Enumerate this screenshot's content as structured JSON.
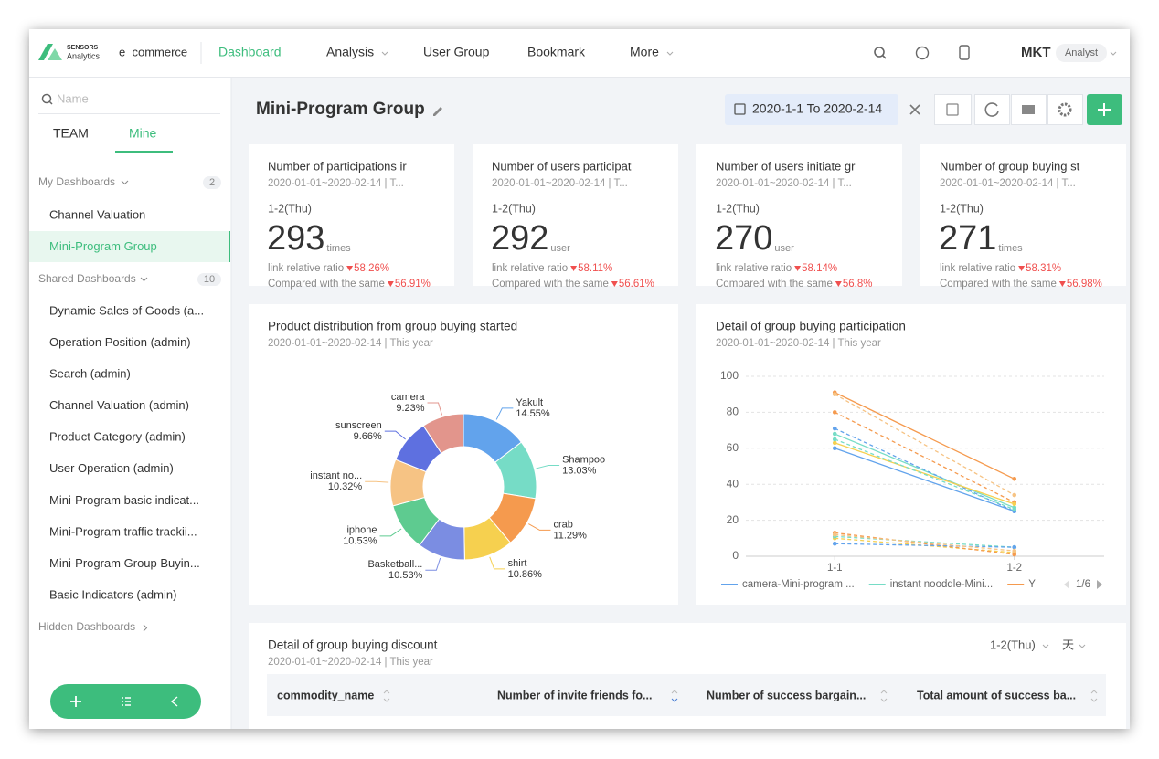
{
  "header": {
    "logo_top": "SENSORS",
    "logo_bottom": "Analytics",
    "project": "e_commerce",
    "nav": [
      "Dashboard",
      "Analysis",
      "User Group",
      "Bookmark",
      "More"
    ],
    "user": "MKT",
    "role": "Analyst"
  },
  "sidebar": {
    "search_placeholder": "Name",
    "tabs": [
      "TEAM",
      "Mine"
    ],
    "my_dashboards": {
      "label": "My Dashboards",
      "count": 2,
      "items": [
        "Channel Valuation",
        "Mini-Program Group"
      ]
    },
    "shared_dashboards": {
      "label": "Shared Dashboards",
      "count": 10,
      "items": [
        "Dynamic Sales of Goods (a...",
        "Operation Position (admin)",
        "Search (admin)",
        "Channel Valuation (admin)",
        "Product Category (admin)",
        "User Operation (admin)",
        "Mini-Program basic indicat...",
        "Mini-Program traffic trackii...",
        "Mini-Program Group Buyin...",
        "Basic Indicators (admin)"
      ]
    },
    "hidden_dashboards": "Hidden Dashboards"
  },
  "main": {
    "title": "Mini-Program Group",
    "date_range": "2020-1-1 To 2020-2-14",
    "kpis": [
      {
        "title": "Number of participations ir",
        "subtitle": "2020-01-01~2020-02-14 | T...",
        "date": "1-2(Thu)",
        "value": 293,
        "unit": "times",
        "ratio_label": "link relative ratio",
        "ratio": "58.26%",
        "compare_label": "Compared with the same",
        "compare": "56.91%"
      },
      {
        "title": "Number of users participat",
        "subtitle": "2020-01-01~2020-02-14 | T...",
        "date": "1-2(Thu)",
        "value": 292,
        "unit": "user",
        "ratio_label": "link relative ratio",
        "ratio": "58.11%",
        "compare_label": "Compared with the same",
        "compare": "56.61%"
      },
      {
        "title": "Number of users initiate gr",
        "subtitle": "2020-01-01~2020-02-14 | T...",
        "date": "1-2(Thu)",
        "value": 270,
        "unit": "user",
        "ratio_label": "link relative ratio",
        "ratio": "58.14%",
        "compare_label": "Compared with the same",
        "compare": "56.8%"
      },
      {
        "title": "Number of group buying st",
        "subtitle": "2020-01-01~2020-02-14 | T...",
        "date": "1-2(Thu)",
        "value": 271,
        "unit": "times",
        "ratio_label": "link relative ratio",
        "ratio": "58.31%",
        "compare_label": "Compared with the same",
        "compare": "56.98%"
      }
    ],
    "table": {
      "title": "Detail of group buying discount",
      "subtitle": "2020-01-01~2020-02-14 | This year",
      "date_select": "1-2(Thu)",
      "unit_select": "天",
      "columns": [
        "commodity_name",
        "Number of invite friends fo...",
        "Number of success bargain...",
        "Total amount of success ba..."
      ]
    }
  },
  "chart_data": [
    {
      "type": "pie",
      "donut": true,
      "title": "Product distribution from group buying started",
      "subtitle": "2020-01-01~2020-02-14 | This year",
      "categories": [
        "Yakult",
        "Shampoo",
        "crab",
        "shirt",
        "Basketball...",
        "iphone",
        "instant no...",
        "sunscreen",
        "camera"
      ],
      "values": [
        14.55,
        13.03,
        11.29,
        10.86,
        10.53,
        10.53,
        10.32,
        9.66,
        9.23
      ],
      "value_labels": [
        "14.55%",
        "13.03%",
        "11.29%",
        "10.86%",
        "10.53%",
        "10.53%",
        "10.32%",
        "9.66%",
        "9.23%"
      ],
      "colors": [
        "#62a3ec",
        "#76dcc6",
        "#f59a4e",
        "#f6d04f",
        "#7b8de2",
        "#5ecb90",
        "#f6c384",
        "#5e70e0",
        "#e2958c"
      ]
    },
    {
      "type": "line",
      "title": "Detail of group buying participation",
      "subtitle": "2020-01-01~2020-02-14 | This year",
      "categories": [
        "1-1",
        "1-2"
      ],
      "ylim": [
        0,
        100
      ],
      "yticks": [
        0,
        20,
        40,
        60,
        80,
        100
      ],
      "grid": true,
      "legend_page": "1/6",
      "series": [
        {
          "name": "camera-Mini-program ...",
          "color": "#62a3ec",
          "values": [
            60,
            25
          ]
        },
        {
          "name": "instant nooddle-Mini...",
          "color": "#76dcc6",
          "values": [
            68,
            27
          ]
        },
        {
          "name": "Y",
          "color": "#f59a4e",
          "values": [
            91,
            43
          ]
        },
        {
          "color": "#f59a4e",
          "dash": true,
          "values": [
            80,
            30
          ]
        },
        {
          "color": "#62a3ec",
          "dash": true,
          "values": [
            71,
            25
          ]
        },
        {
          "color": "#f6d04f",
          "values": [
            63,
            29
          ]
        },
        {
          "color": "#f6c384",
          "dash": true,
          "values": [
            90,
            34
          ]
        },
        {
          "color": "#76dcc6",
          "dash": true,
          "values": [
            65,
            26
          ]
        },
        {
          "color": "#f6d04f",
          "dash": true,
          "values": [
            10,
            2
          ]
        },
        {
          "color": "#f59a4e",
          "dash": true,
          "values": [
            13,
            1
          ]
        },
        {
          "color": "#76dcc6",
          "dash": true,
          "values": [
            11,
            5
          ]
        },
        {
          "color": "#62a3ec",
          "dash": true,
          "values": [
            7,
            5
          ]
        },
        {
          "color": "#f6c384",
          "dash": true,
          "values": [
            12,
            3
          ]
        }
      ]
    }
  ]
}
